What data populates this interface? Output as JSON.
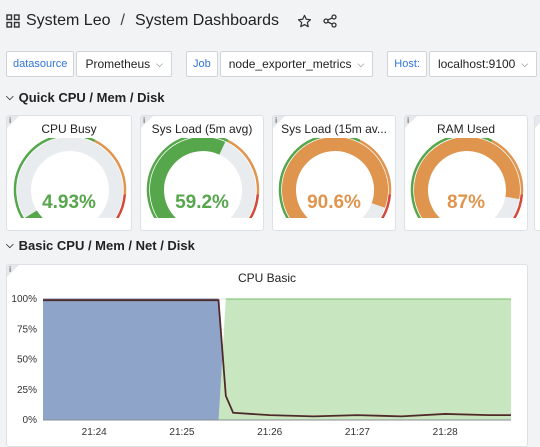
{
  "breadcrumb": {
    "folder": "System Leo",
    "separator": "/",
    "dashboard": "System Dashboards"
  },
  "variables": [
    {
      "label": "datasource",
      "value": "Prometheus"
    },
    {
      "label": "Job",
      "value": "node_exporter_metrics"
    },
    {
      "label": "Host:",
      "value": "localhost:9100"
    }
  ],
  "rows": [
    {
      "title": "Quick CPU / Mem / Disk"
    },
    {
      "title": "Basic CPU / Mem / Net / Disk"
    }
  ],
  "info_glyph": "i",
  "gauges": [
    {
      "title": "CPU Busy",
      "value_text": "4.93%",
      "fraction": 0.0493,
      "color": "#56a64b"
    },
    {
      "title": "Sys Load (5m avg)",
      "value_text": "59.2%",
      "fraction": 0.592,
      "color": "#56a64b"
    },
    {
      "title": "Sys Load (15m av...",
      "value_text": "90.6%",
      "fraction": 0.906,
      "color": "#e0954e"
    },
    {
      "title": "RAM Used",
      "value_text": "87%",
      "fraction": 0.87,
      "color": "#e0954e"
    }
  ],
  "chart_data": {
    "type": "area",
    "title": "CPU Basic",
    "x_ticks": [
      "21:24",
      "21:25",
      "21:26",
      "21:27",
      "21:28"
    ],
    "y_ticks": [
      "0%",
      "25%",
      "50%",
      "75%",
      "100%"
    ],
    "ylim": [
      0,
      100
    ],
    "grid": true,
    "series": [
      {
        "color": "#8ea4c8",
        "x": [
          "21:23:25",
          "21:25:15",
          "21:25:25",
          "21:25:30",
          "21:25:35"
        ],
        "values": [
          100,
          100,
          100,
          18,
          0
        ]
      },
      {
        "color": "#c8e6c0",
        "x": [
          "21:25:25",
          "21:25:30",
          "21:25:35",
          "21:28:45"
        ],
        "values": [
          0,
          100,
          100,
          100
        ]
      },
      {
        "color": "#333333",
        "x": [
          "21:23:25",
          "21:25:20",
          "21:25:25",
          "21:25:30",
          "21:25:35",
          "21:26:00",
          "21:26:30",
          "21:27:00",
          "21:27:30",
          "21:28:00",
          "21:28:30",
          "21:28:45"
        ],
        "values": [
          99,
          99,
          99,
          20,
          6,
          4,
          3,
          4,
          3,
          5,
          4,
          4
        ]
      }
    ]
  }
}
